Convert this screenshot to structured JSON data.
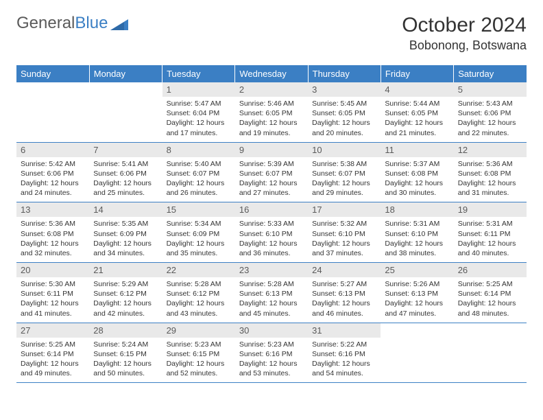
{
  "brand": {
    "name_part1": "General",
    "name_part2": "Blue"
  },
  "title": "October 2024",
  "location": "Bobonong, Botswana",
  "colors": {
    "header_bg": "#3b7fc4",
    "header_text": "#ffffff",
    "daynum_bg": "#e9e9e9",
    "daynum_text": "#5a5a5a",
    "body_text": "#333333",
    "divider": "#3b7fc4"
  },
  "weekdays": [
    "Sunday",
    "Monday",
    "Tuesday",
    "Wednesday",
    "Thursday",
    "Friday",
    "Saturday"
  ],
  "weeks": [
    [
      null,
      null,
      {
        "n": "1",
        "sunrise": "5:47 AM",
        "sunset": "6:04 PM",
        "daylight": "12 hours and 17 minutes."
      },
      {
        "n": "2",
        "sunrise": "5:46 AM",
        "sunset": "6:05 PM",
        "daylight": "12 hours and 19 minutes."
      },
      {
        "n": "3",
        "sunrise": "5:45 AM",
        "sunset": "6:05 PM",
        "daylight": "12 hours and 20 minutes."
      },
      {
        "n": "4",
        "sunrise": "5:44 AM",
        "sunset": "6:05 PM",
        "daylight": "12 hours and 21 minutes."
      },
      {
        "n": "5",
        "sunrise": "5:43 AM",
        "sunset": "6:06 PM",
        "daylight": "12 hours and 22 minutes."
      }
    ],
    [
      {
        "n": "6",
        "sunrise": "5:42 AM",
        "sunset": "6:06 PM",
        "daylight": "12 hours and 24 minutes."
      },
      {
        "n": "7",
        "sunrise": "5:41 AM",
        "sunset": "6:06 PM",
        "daylight": "12 hours and 25 minutes."
      },
      {
        "n": "8",
        "sunrise": "5:40 AM",
        "sunset": "6:07 PM",
        "daylight": "12 hours and 26 minutes."
      },
      {
        "n": "9",
        "sunrise": "5:39 AM",
        "sunset": "6:07 PM",
        "daylight": "12 hours and 27 minutes."
      },
      {
        "n": "10",
        "sunrise": "5:38 AM",
        "sunset": "6:07 PM",
        "daylight": "12 hours and 29 minutes."
      },
      {
        "n": "11",
        "sunrise": "5:37 AM",
        "sunset": "6:08 PM",
        "daylight": "12 hours and 30 minutes."
      },
      {
        "n": "12",
        "sunrise": "5:36 AM",
        "sunset": "6:08 PM",
        "daylight": "12 hours and 31 minutes."
      }
    ],
    [
      {
        "n": "13",
        "sunrise": "5:36 AM",
        "sunset": "6:08 PM",
        "daylight": "12 hours and 32 minutes."
      },
      {
        "n": "14",
        "sunrise": "5:35 AM",
        "sunset": "6:09 PM",
        "daylight": "12 hours and 34 minutes."
      },
      {
        "n": "15",
        "sunrise": "5:34 AM",
        "sunset": "6:09 PM",
        "daylight": "12 hours and 35 minutes."
      },
      {
        "n": "16",
        "sunrise": "5:33 AM",
        "sunset": "6:10 PM",
        "daylight": "12 hours and 36 minutes."
      },
      {
        "n": "17",
        "sunrise": "5:32 AM",
        "sunset": "6:10 PM",
        "daylight": "12 hours and 37 minutes."
      },
      {
        "n": "18",
        "sunrise": "5:31 AM",
        "sunset": "6:10 PM",
        "daylight": "12 hours and 38 minutes."
      },
      {
        "n": "19",
        "sunrise": "5:31 AM",
        "sunset": "6:11 PM",
        "daylight": "12 hours and 40 minutes."
      }
    ],
    [
      {
        "n": "20",
        "sunrise": "5:30 AM",
        "sunset": "6:11 PM",
        "daylight": "12 hours and 41 minutes."
      },
      {
        "n": "21",
        "sunrise": "5:29 AM",
        "sunset": "6:12 PM",
        "daylight": "12 hours and 42 minutes."
      },
      {
        "n": "22",
        "sunrise": "5:28 AM",
        "sunset": "6:12 PM",
        "daylight": "12 hours and 43 minutes."
      },
      {
        "n": "23",
        "sunrise": "5:28 AM",
        "sunset": "6:13 PM",
        "daylight": "12 hours and 45 minutes."
      },
      {
        "n": "24",
        "sunrise": "5:27 AM",
        "sunset": "6:13 PM",
        "daylight": "12 hours and 46 minutes."
      },
      {
        "n": "25",
        "sunrise": "5:26 AM",
        "sunset": "6:13 PM",
        "daylight": "12 hours and 47 minutes."
      },
      {
        "n": "26",
        "sunrise": "5:25 AM",
        "sunset": "6:14 PM",
        "daylight": "12 hours and 48 minutes."
      }
    ],
    [
      {
        "n": "27",
        "sunrise": "5:25 AM",
        "sunset": "6:14 PM",
        "daylight": "12 hours and 49 minutes."
      },
      {
        "n": "28",
        "sunrise": "5:24 AM",
        "sunset": "6:15 PM",
        "daylight": "12 hours and 50 minutes."
      },
      {
        "n": "29",
        "sunrise": "5:23 AM",
        "sunset": "6:15 PM",
        "daylight": "12 hours and 52 minutes."
      },
      {
        "n": "30",
        "sunrise": "5:23 AM",
        "sunset": "6:16 PM",
        "daylight": "12 hours and 53 minutes."
      },
      {
        "n": "31",
        "sunrise": "5:22 AM",
        "sunset": "6:16 PM",
        "daylight": "12 hours and 54 minutes."
      },
      null,
      null
    ]
  ],
  "labels": {
    "sunrise_prefix": "Sunrise: ",
    "sunset_prefix": "Sunset: ",
    "daylight_prefix": "Daylight: "
  }
}
